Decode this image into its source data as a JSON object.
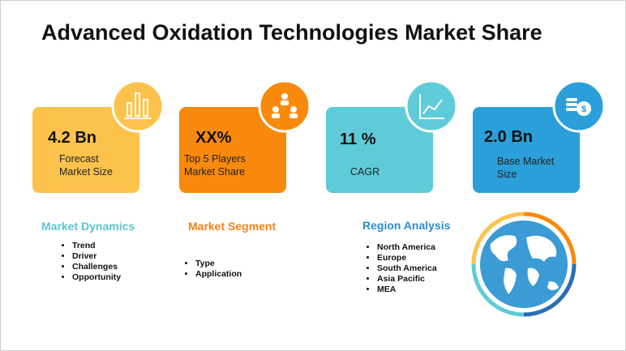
{
  "header": {
    "title": "Advanced Oxidation Technologies Market Share"
  },
  "cards": [
    {
      "value": "4.2 Bn",
      "label": [
        "Forecast",
        "Market Size"
      ]
    },
    {
      "value": "XX%",
      "label": [
        "Top 5 Players",
        "Market Share"
      ]
    },
    {
      "value": "11 %",
      "label": [
        "CAGR"
      ]
    },
    {
      "value": "2.0 Bn",
      "label": [
        "Base Market",
        "Size"
      ]
    }
  ],
  "sections": [
    {
      "title": "Market Dynamics",
      "items": [
        "Trend",
        "Driver",
        "Challenges",
        "Opportunity"
      ]
    },
    {
      "title": "Market Segment",
      "items": [
        "Type",
        "Application"
      ]
    },
    {
      "title": "Region Analysis",
      "items": [
        "North America",
        "Europe",
        "South America",
        "Asia Pacific",
        "MEA"
      ]
    }
  ]
}
